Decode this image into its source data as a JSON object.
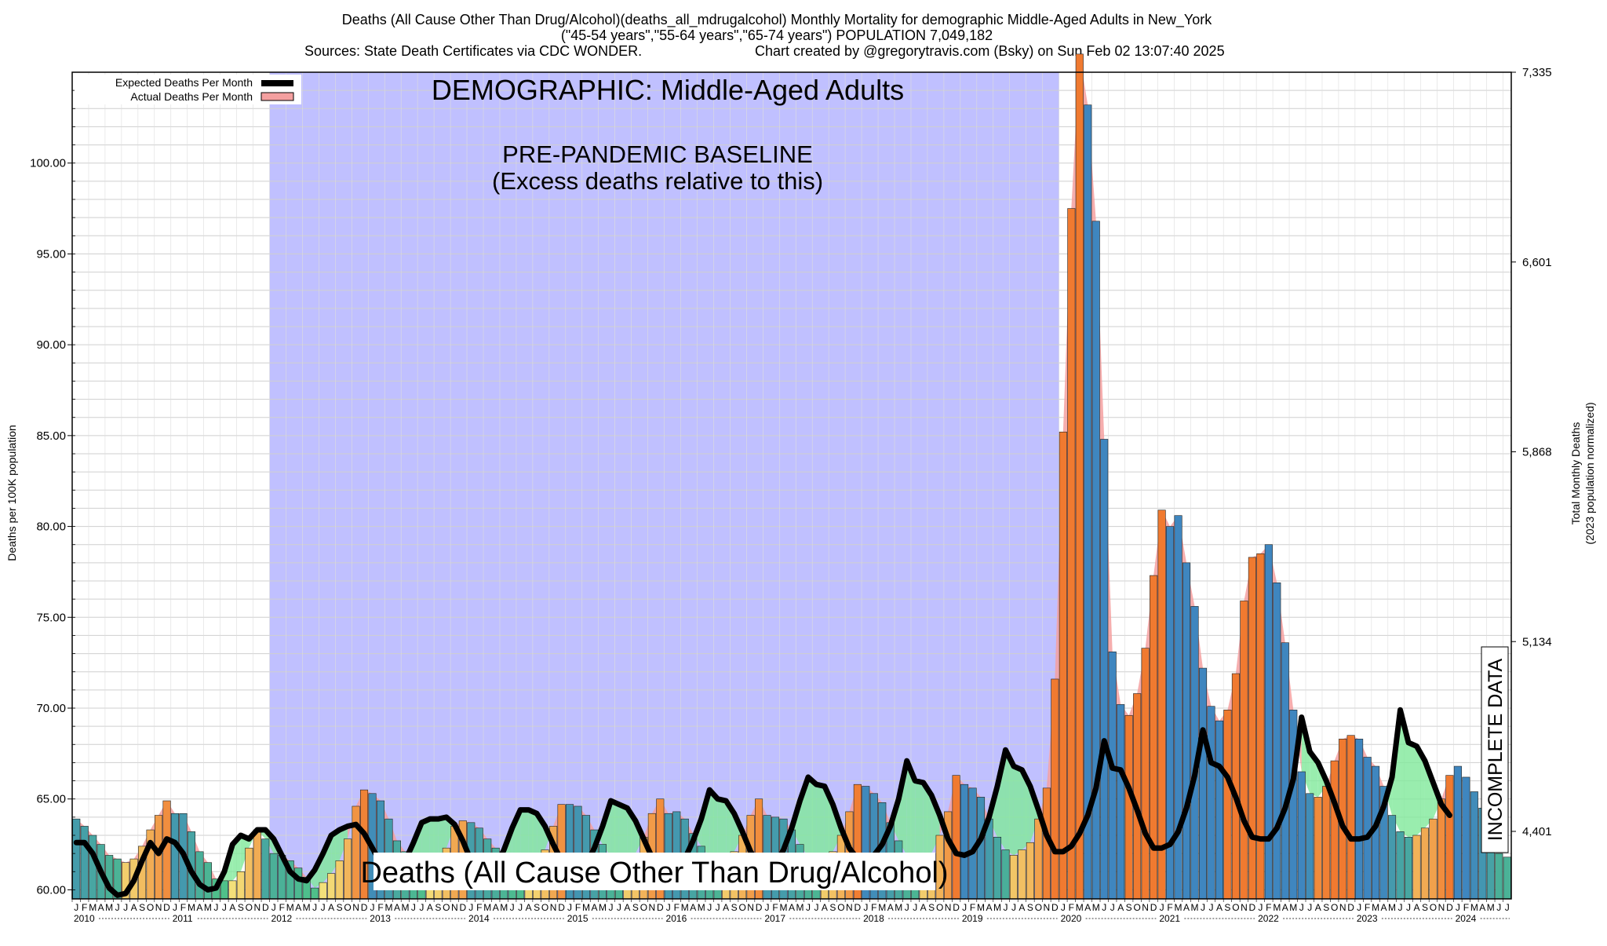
{
  "header": {
    "title_line1": "Deaths (All Cause Other Than Drug/Alcohol)(deaths_all_mdrugalcohol) Monthly Mortality for demographic Middle-Aged Adults in New_York",
    "title_line2": "(\"45-54 years\",\"55-64 years\",\"65-74 years\") POPULATION 7,049,182",
    "sources": "Sources: State Death Certificates via CDC WONDER.",
    "credit": "Chart created by @gregorytravis.com (Bsky) on Sun Feb 02 13:07:40 2025"
  },
  "legend": {
    "expected_label": "Expected Deaths Per Month",
    "actual_label": "Actual Deaths Per Month"
  },
  "overlays": {
    "demographic": "DEMOGRAPHIC: Middle-Aged Adults",
    "baseline_line1": "PRE-PANDEMIC BASELINE",
    "baseline_line2": "(Excess deaths relative to this)",
    "bottom_label": "Deaths (All Cause Other Than Drug/Alcohol)",
    "incomplete": "INCOMPLETE DATA"
  },
  "colors": {
    "baseline_band": "#c0c0ff",
    "expected_line": "#000000",
    "actual_fill": "#f4a0a0",
    "excess_below": "#80e89a",
    "bar_blue": "#3f86bf",
    "bar_orange": "#f07a30",
    "bar_yellow": "#f3e07a",
    "hatch": "#888888"
  },
  "chart_data": {
    "type": "bar",
    "title": "Deaths (All Cause Other Than Drug/Alcohol)(deaths_all_mdrugalcohol) Monthly Mortality for demographic Middle-Aged Adults in New_York",
    "ylabel": "Deaths per 100K population",
    "y2label_line1": "Total Monthly Deaths",
    "y2label_line2": "(2023 population normalized)",
    "ylim": [
      59.5,
      105.0
    ],
    "yticks": [
      "60.00",
      "65.00",
      "70.00",
      "75.00",
      "80.00",
      "85.00",
      "90.00",
      "95.00",
      "100.00"
    ],
    "y2ticks": [
      "4,401",
      "5,134",
      "5,868",
      "6,601",
      "7,335"
    ],
    "month_letters": [
      "J",
      "F",
      "M",
      "A",
      "M",
      "J",
      "J",
      "A",
      "S",
      "O",
      "N",
      "D"
    ],
    "years": [
      "2010",
      "2011",
      "2012",
      "2013",
      "2014",
      "2015",
      "2016",
      "2017",
      "2018",
      "2019",
      "2020",
      "2021",
      "2022",
      "2023",
      "2024"
    ],
    "start": "2010-01",
    "baseline_period": [
      "2012-01",
      "2019-12"
    ],
    "incomplete_from": "2024-11",
    "grid": true,
    "legend_position": "top-left",
    "series": [
      {
        "name": "Actual Deaths Per Month",
        "values": [
          63.9,
          63.5,
          63.0,
          62.5,
          61.9,
          61.7,
          61.5,
          61.7,
          62.4,
          63.3,
          64.1,
          64.9,
          64.2,
          64.2,
          63.2,
          62.1,
          61.5,
          60.6,
          60.5,
          60.5,
          61.0,
          62.3,
          63.3,
          62.8,
          62.0,
          61.9,
          61.6,
          61.2,
          60.7,
          60.1,
          60.4,
          60.9,
          61.6,
          62.8,
          64.6,
          65.5,
          65.3,
          64.9,
          63.9,
          62.7,
          62.1,
          61.4,
          60.8,
          60.8,
          61.3,
          62.3,
          63.5,
          63.8,
          63.7,
          63.4,
          62.8,
          62.3,
          61.6,
          61.1,
          60.9,
          61.0,
          61.3,
          62.2,
          63.5,
          64.7,
          64.7,
          64.6,
          64.1,
          63.3,
          62.5,
          61.8,
          61.5,
          61.6,
          62.0,
          62.9,
          64.2,
          65.0,
          64.2,
          64.3,
          63.9,
          63.1,
          62.4,
          61.8,
          61.6,
          61.7,
          62.1,
          63.0,
          64.1,
          65.0,
          64.1,
          64.0,
          63.9,
          63.3,
          62.5,
          61.8,
          61.5,
          61.6,
          62.1,
          63.0,
          64.3,
          65.8,
          65.7,
          65.3,
          64.8,
          63.7,
          62.7,
          61.9,
          61.5,
          61.5,
          62.0,
          63.0,
          64.3,
          66.3,
          65.8,
          65.6,
          65.1,
          63.9,
          62.9,
          62.2,
          61.9,
          62.2,
          62.6,
          63.9,
          65.6,
          71.6,
          85.2,
          97.5,
          106.0,
          103.2,
          96.8,
          84.8,
          73.1,
          70.2,
          69.6,
          70.8,
          73.3,
          77.3,
          80.9,
          80.0,
          80.6,
          78.0,
          75.6,
          72.2,
          70.1,
          69.3,
          69.9,
          71.9,
          75.9,
          78.3,
          78.5,
          79.0,
          76.9,
          73.6,
          69.9,
          66.5,
          65.3,
          65.1,
          65.7,
          67.1,
          68.3,
          68.5,
          68.3,
          67.3,
          66.8,
          65.7,
          64.1,
          63.2,
          62.9,
          63.0,
          63.4,
          63.9,
          65.0,
          66.3,
          66.8,
          66.2,
          65.4,
          64.5,
          63.3,
          62.0,
          61.8
        ]
      },
      {
        "name": "Expected Deaths Per Month",
        "values": [
          62.6,
          62.6,
          62.0,
          61.0,
          60.1,
          59.7,
          59.8,
          60.5,
          61.6,
          62.6,
          62.0,
          62.8,
          62.6,
          62.0,
          61.0,
          60.3,
          60.0,
          60.1,
          61.0,
          62.5,
          63.0,
          62.8,
          63.3,
          63.3,
          62.8,
          61.9,
          61.0,
          60.6,
          60.5,
          61.1,
          62.0,
          63.0,
          63.3,
          63.5,
          63.6,
          63.1,
          62.3,
          61.5,
          61.1,
          61.1,
          61.6,
          62.6,
          63.7,
          63.9,
          63.9,
          64.0,
          63.6,
          62.7,
          61.6,
          61.0,
          60.9,
          61.3,
          62.2,
          63.4,
          64.4,
          64.4,
          64.2,
          63.5,
          62.5,
          61.6,
          61.0,
          61.0,
          61.4,
          62.3,
          63.5,
          64.9,
          64.7,
          64.5,
          63.8,
          62.8,
          61.8,
          61.0,
          60.9,
          61.1,
          61.7,
          62.7,
          63.9,
          65.5,
          65.0,
          64.9,
          64.2,
          63.2,
          62.1,
          61.4,
          61.2,
          61.4,
          62.2,
          63.4,
          64.9,
          66.2,
          65.8,
          65.7,
          64.7,
          63.4,
          62.3,
          61.7,
          61.7,
          61.9,
          62.5,
          63.5,
          65.0,
          67.1,
          66.0,
          65.9,
          65.2,
          64.1,
          62.8,
          62.0,
          61.9,
          62.1,
          62.8,
          64.0,
          65.7,
          67.7,
          66.8,
          66.6,
          65.7,
          64.4,
          63.0,
          62.1,
          62.1,
          62.4,
          63.1,
          64.1,
          65.6,
          68.2,
          66.7,
          66.6,
          65.6,
          64.4,
          63.1,
          62.3,
          62.3,
          62.5,
          63.2,
          64.5,
          66.3,
          68.8,
          67.0,
          66.8,
          66.2,
          65.1,
          63.8,
          62.9,
          62.8,
          62.8,
          63.4,
          64.5,
          66.1,
          69.5,
          67.6,
          67.0,
          66.0,
          64.8,
          63.5,
          62.8,
          62.8,
          62.9,
          63.5,
          64.6,
          66.2,
          69.9,
          68.1,
          67.9,
          67.1,
          65.9,
          64.7,
          64.1
        ]
      }
    ]
  }
}
